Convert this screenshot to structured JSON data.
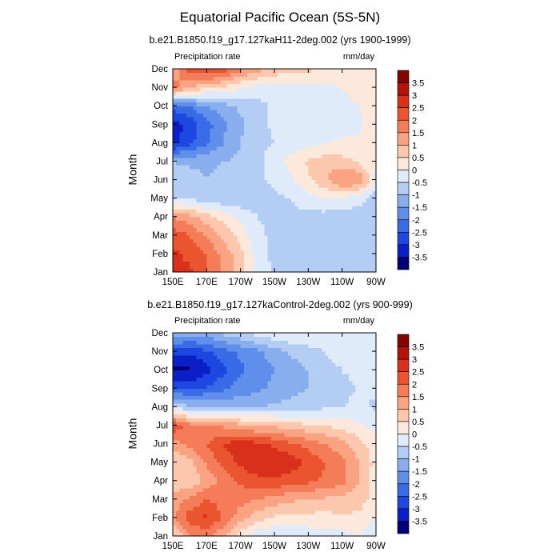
{
  "figure": {
    "title": "Equatorial Pacific Ocean (5S-5N)"
  },
  "colors": {
    "scale": [
      "#00007a",
      "#0a1fc8",
      "#1e46e0",
      "#3a6be6",
      "#5f8fea",
      "#88aeee",
      "#b4cdf4",
      "#dfeafb",
      "#fde9dc",
      "#fcc7ad",
      "#f9a382",
      "#f47c58",
      "#ea5530",
      "#d8301a",
      "#b51308",
      "#840400"
    ]
  },
  "chart_data": [
    {
      "type": "heatmap",
      "title": "b.e21.B1850.f19_g17.127kaH11-2deg.002 (yrs 1900-1999)",
      "left_label": "Precipitation rate",
      "right_label": "mm/day",
      "xlabel": "",
      "ylabel": "Month",
      "x_ticks": [
        "150E",
        "170E",
        "170W",
        "150W",
        "130W",
        "110W",
        "90W"
      ],
      "y_ticks": [
        "Jan",
        "Feb",
        "Mar",
        "Apr",
        "May",
        "Jun",
        "Jul",
        "Aug",
        "Sep",
        "Oct",
        "Nov",
        "Dec"
      ],
      "colorbar_labels": [
        "3.5",
        "3",
        "2.5",
        "2",
        "1.5",
        "1",
        "0.5",
        "0",
        "-0.5",
        "-1",
        "-1.5",
        "-2",
        "-2.5",
        "-3",
        "-3.5"
      ],
      "levels": [
        -3.5,
        -3,
        -2.5,
        -2,
        -1.5,
        -1,
        -0.5,
        0,
        0.5,
        1,
        1.5,
        2,
        2.5,
        3,
        3.5
      ],
      "lon_range": [
        150,
        270
      ],
      "values": [
        [
          2.5,
          2.6,
          2.0,
          1.3,
          0.8,
          -0.2,
          -0.6,
          -0.7,
          -0.8,
          -0.9,
          -1.0,
          -1.0,
          -1.0
        ],
        [
          2.6,
          2.4,
          2.0,
          1.3,
          0.7,
          -0.3,
          -0.6,
          -0.7,
          -0.8,
          -0.9,
          -0.9,
          -1.0,
          -1.0
        ],
        [
          2.3,
          2.0,
          1.4,
          0.9,
          0.3,
          -0.4,
          -0.6,
          -0.7,
          -0.8,
          -0.8,
          -0.9,
          -0.9,
          -1.0
        ],
        [
          1.5,
          1.2,
          0.7,
          0.3,
          -0.2,
          -0.5,
          -0.6,
          -0.6,
          -0.7,
          -0.7,
          -0.8,
          -0.8,
          -0.9
        ],
        [
          -0.5,
          -0.6,
          -0.8,
          -0.9,
          -0.8,
          -0.7,
          -0.6,
          -0.5,
          -0.2,
          0.0,
          -0.1,
          -0.3,
          -0.8
        ],
        [
          -0.7,
          -0.8,
          -1.0,
          -0.9,
          -0.8,
          -0.6,
          -0.4,
          -0.1,
          0.4,
          0.9,
          1.6,
          1.5,
          -0.2
        ],
        [
          -1.0,
          -1.1,
          -1.1,
          -1.0,
          -0.9,
          -0.7,
          -0.2,
          0.2,
          0.6,
          0.8,
          0.7,
          0.4,
          0.0
        ],
        [
          -3.2,
          -2.6,
          -2.1,
          -1.5,
          -1.0,
          -0.6,
          -0.5,
          -0.3,
          -0.2,
          0.0,
          0.1,
          0.1,
          0.3
        ],
        [
          -3.4,
          -2.8,
          -2.2,
          -1.6,
          -1.1,
          -0.7,
          -0.4,
          -0.3,
          -0.3,
          -0.3,
          -0.2,
          -0.1,
          0.2
        ],
        [
          -2.2,
          -2.0,
          -1.5,
          -1.2,
          -0.9,
          -0.7,
          -0.4,
          -0.3,
          -0.2,
          -0.1,
          -0.1,
          0.0,
          0.4
        ],
        [
          1.8,
          1.0,
          0.6,
          0.4,
          0.0,
          -0.2,
          -0.3,
          -0.2,
          -0.2,
          -0.1,
          0.0,
          0.1,
          0.4
        ],
        [
          1.0,
          2.4,
          2.6,
          2.3,
          1.7,
          1.2,
          0.9,
          0.6,
          0.6,
          0.5,
          0.4,
          0.4,
          0.4
        ]
      ]
    },
    {
      "type": "heatmap",
      "title": "b.e21.B1850.f19_g17.127kaControl-2deg.002 (yrs 900-999)",
      "left_label": "Precipitation rate",
      "right_label": "mm/day",
      "xlabel": "",
      "ylabel": "Month",
      "x_ticks": [
        "150E",
        "170E",
        "170W",
        "150W",
        "130W",
        "110W",
        "90W"
      ],
      "y_ticks": [
        "Jan",
        "Feb",
        "Mar",
        "Apr",
        "May",
        "Jun",
        "Jul",
        "Aug",
        "Sep",
        "Oct",
        "Nov",
        "Dec"
      ],
      "colorbar_labels": [
        "3.5",
        "3",
        "2.5",
        "2",
        "1.5",
        "1",
        "0.5",
        "0",
        "-0.5",
        "-1",
        "-1.5",
        "-2",
        "-2.5",
        "-3",
        "-3.5"
      ],
      "levels": [
        -3.5,
        -3,
        -2.5,
        -2,
        -1.5,
        -1,
        -0.5,
        0,
        0.5,
        1,
        1.5,
        2,
        2.5,
        3,
        3.5
      ],
      "lon_range": [
        150,
        270
      ],
      "values": [
        [
          0.3,
          1.4,
          1.6,
          1.0,
          0.2,
          -0.4,
          -0.5,
          -0.4,
          -0.3,
          -0.3,
          -0.2,
          0.0,
          -0.6
        ],
        [
          1.4,
          2.3,
          2.6,
          1.9,
          1.2,
          0.7,
          0.4,
          0.3,
          0.3,
          0.3,
          0.4,
          0.4,
          0.0
        ],
        [
          1.2,
          1.6,
          2.0,
          1.8,
          1.7,
          1.5,
          1.3,
          1.1,
          1.0,
          0.9,
          0.8,
          0.7,
          0.3
        ],
        [
          0.6,
          0.6,
          1.2,
          1.7,
          2.1,
          2.3,
          2.4,
          2.2,
          2.1,
          1.9,
          1.7,
          1.0,
          0.2
        ],
        [
          0.5,
          0.8,
          1.6,
          2.2,
          2.6,
          3.0,
          3.0,
          2.8,
          2.4,
          2.0,
          1.6,
          1.0,
          0.3
        ],
        [
          1.2,
          1.7,
          2.0,
          2.5,
          2.8,
          2.6,
          2.4,
          2.1,
          1.8,
          1.5,
          1.2,
          0.7,
          0.2
        ],
        [
          2.5,
          1.7,
          1.5,
          1.4,
          1.2,
          1.0,
          0.9,
          0.7,
          0.6,
          0.5,
          0.3,
          0.1,
          -0.2
        ],
        [
          -0.6,
          -0.9,
          -1.0,
          -1.1,
          -1.1,
          -1.0,
          -0.9,
          -0.8,
          -0.7,
          -0.6,
          -0.5,
          -0.4,
          -0.6
        ],
        [
          -2.4,
          -2.6,
          -2.4,
          -2.1,
          -1.8,
          -1.6,
          -1.4,
          -1.2,
          -1.0,
          -0.8,
          -0.6,
          -0.5,
          -0.4
        ],
        [
          -3.6,
          -3.6,
          -3.2,
          -2.6,
          -2.1,
          -1.8,
          -1.5,
          -1.3,
          -1.0,
          -0.7,
          -0.5,
          -0.4,
          -0.2
        ],
        [
          -2.9,
          -2.9,
          -2.6,
          -2.2,
          -1.9,
          -1.6,
          -1.2,
          -0.9,
          -0.7,
          -0.5,
          -0.3,
          -0.2,
          0.0
        ],
        [
          -0.9,
          -1.3,
          -1.2,
          -0.9,
          -0.6,
          -0.3,
          -0.1,
          0.0,
          0.0,
          -0.1,
          -0.1,
          0.0,
          0.0
        ]
      ]
    }
  ]
}
